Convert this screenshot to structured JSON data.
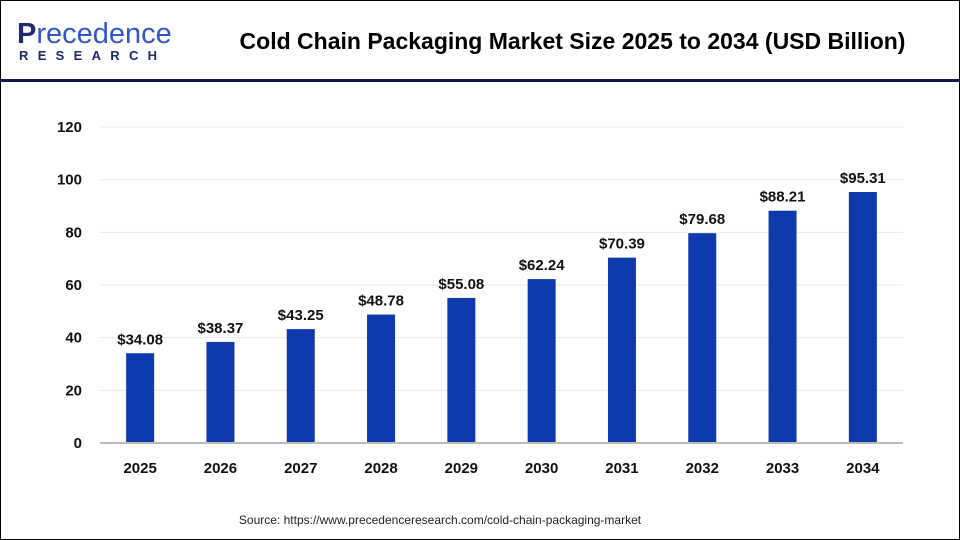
{
  "brand": {
    "logo_line1": "Precedence",
    "logo_line2": "RESEARCH"
  },
  "chart_data": {
    "type": "bar",
    "title": "Cold Chain Packaging Market Size 2025 to 2034 (USD Billion)",
    "categories": [
      "2025",
      "2026",
      "2027",
      "2028",
      "2029",
      "2030",
      "2031",
      "2032",
      "2033",
      "2034"
    ],
    "values": [
      34.08,
      38.37,
      43.25,
      48.78,
      55.08,
      62.24,
      70.39,
      79.68,
      88.21,
      95.31
    ],
    "data_labels": [
      "$34.08",
      "$38.37",
      "$43.25",
      "$48.78",
      "$55.08",
      "$62.24",
      "$70.39",
      "$79.68",
      "$88.21",
      "$95.31"
    ],
    "xlabel": "",
    "ylabel": "",
    "ylim": [
      0,
      120
    ],
    "yticks": [
      0,
      20,
      40,
      60,
      80,
      100,
      120
    ],
    "grid": true,
    "bar_color": "#0d3aad"
  },
  "source": "Source: https://www.precedenceresearch.com/cold-chain-packaging-market"
}
